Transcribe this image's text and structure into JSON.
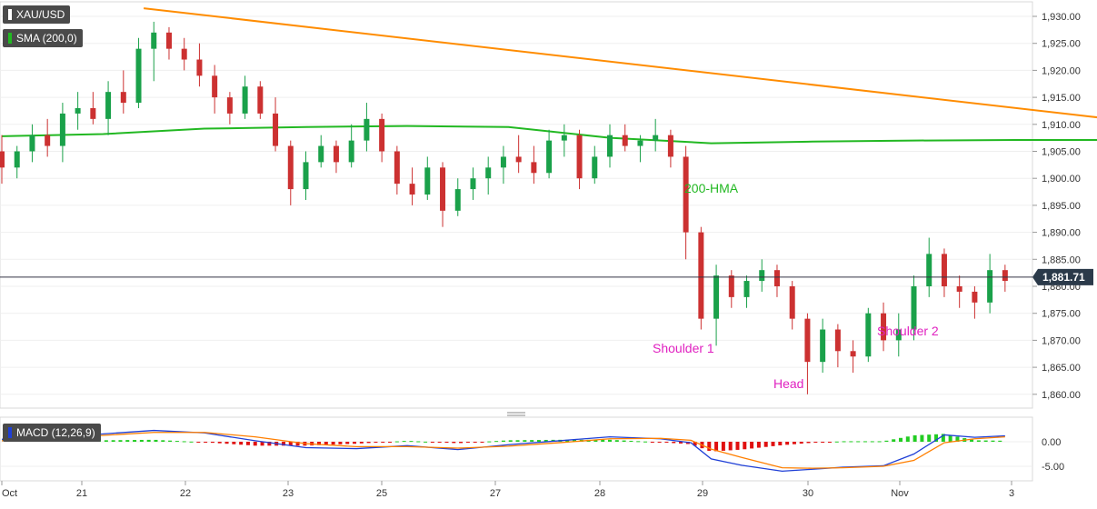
{
  "symbol": "XAU/USD",
  "indicator_label": "SMA (200,0)",
  "macd_label": "MACD (12,26,9)",
  "price_tag": "1,881.71",
  "colors": {
    "bull": "#1aa14a",
    "bear": "#cc3131",
    "trend_down": "#ff8c00",
    "neckline": "#ff00ff",
    "hma": "#22b822",
    "macd_line": "#1f3fd6",
    "signal_line": "#ff7f00",
    "hist_pos": "#22cc22",
    "hist_neg": "#e01010",
    "annotation": "#e020c0"
  },
  "chart_data": [
    {
      "type": "candlestick",
      "title": "XAU/USD",
      "x_ticks": [
        "Oct",
        "21",
        "22",
        "23",
        "25",
        "27",
        "28",
        "29",
        "30",
        "Nov",
        "3"
      ],
      "y_ticks": [
        "1,930.00",
        "1,925.00",
        "1,920.00",
        "1,915.00",
        "1,910.00",
        "1,905.00",
        "1,900.00",
        "1,895.00",
        "1,890.00",
        "1,885.00",
        "1,880.00",
        "1,875.00",
        "1,870.00",
        "1,865.00",
        "1,860.00"
      ],
      "ylim": [
        1858,
        1932
      ],
      "current_price": 1881.71,
      "overlays": {
        "hma_label": "200-HMA",
        "hma": [
          [
            0,
            1907.8
          ],
          [
            1,
            1908.2
          ],
          [
            2,
            1909.2
          ],
          [
            3,
            1909.5
          ],
          [
            4,
            1909.7
          ],
          [
            5,
            1909.5
          ],
          [
            6,
            1907.5
          ],
          [
            7,
            1906.5
          ],
          [
            8,
            1906.8
          ],
          [
            9,
            1907.0
          ],
          [
            10,
            1907.1
          ],
          [
            11,
            1907.1
          ],
          [
            12,
            1907.3
          ],
          [
            13,
            1907.2
          ],
          [
            14,
            1906.5
          ],
          [
            15,
            1904.0
          ],
          [
            16,
            1902.0
          ],
          [
            17,
            1899.5
          ],
          [
            17.3,
            1898.6
          ],
          [
            17.6,
            1897.8
          ]
        ],
        "resistance_line": [
          [
            1.4,
            1931.5
          ],
          [
            18.4,
            1895
          ]
        ],
        "neckline": [
          [
            14.2,
            1883.8
          ],
          [
            19.1,
            1888.3
          ]
        ]
      },
      "annotations": [
        "Shoulder 1",
        "Head",
        "Shoulder 2"
      ],
      "series": [
        {
          "name": "candles",
          "ohlc": [
            [
              0,
              1905,
              1908,
              1899,
              1902
            ],
            [
              0.15,
              1902,
              1906,
              1900,
              1905
            ],
            [
              0.3,
              1905,
              1910,
              1903,
              1908
            ],
            [
              0.45,
              1908,
              1911,
              1904,
              1906
            ],
            [
              0.6,
              1906,
              1914,
              1903,
              1912
            ],
            [
              0.75,
              1912,
              1916,
              1909,
              1913
            ],
            [
              0.9,
              1913,
              1916,
              1910,
              1911
            ],
            [
              1.05,
              1911,
              1918,
              1908,
              1916
            ],
            [
              1.2,
              1916,
              1920,
              1912,
              1914
            ],
            [
              1.35,
              1914,
              1926,
              1913,
              1924
            ],
            [
              1.5,
              1924,
              1929,
              1918,
              1927
            ],
            [
              1.65,
              1927,
              1928,
              1922,
              1924
            ],
            [
              1.8,
              1924,
              1926,
              1920,
              1922
            ],
            [
              1.95,
              1922,
              1925,
              1917,
              1919
            ],
            [
              2.1,
              1919,
              1921,
              1912,
              1915
            ],
            [
              2.25,
              1915,
              1916,
              1910,
              1912
            ],
            [
              2.4,
              1912,
              1919,
              1911,
              1917
            ],
            [
              2.55,
              1917,
              1918,
              1911,
              1912
            ],
            [
              2.7,
              1912,
              1915,
              1905,
              1906
            ],
            [
              2.85,
              1906,
              1907,
              1895,
              1898
            ],
            [
              3.0,
              1898,
              1905,
              1896,
              1903
            ],
            [
              3.15,
              1903,
              1908,
              1902,
              1906
            ],
            [
              3.3,
              1906,
              1907,
              1901,
              1903
            ],
            [
              3.45,
              1903,
              1910,
              1902,
              1907
            ],
            [
              3.6,
              1907,
              1914,
              1905,
              1911
            ],
            [
              3.75,
              1911,
              1912,
              1903,
              1905
            ],
            [
              3.9,
              1905,
              1906,
              1897,
              1899
            ],
            [
              4.05,
              1899,
              1902,
              1895,
              1897
            ],
            [
              4.2,
              1897,
              1904,
              1896,
              1902
            ],
            [
              4.35,
              1902,
              1903,
              1891,
              1894
            ],
            [
              4.5,
              1894,
              1900,
              1893,
              1898
            ],
            [
              4.65,
              1898,
              1902,
              1896,
              1900
            ],
            [
              4.8,
              1900,
              1904,
              1897,
              1902
            ],
            [
              4.95,
              1902,
              1906,
              1899,
              1904
            ],
            [
              5.1,
              1904,
              1908,
              1901,
              1903
            ],
            [
              5.25,
              1903,
              1906,
              1899,
              1901
            ],
            [
              5.4,
              1901,
              1909,
              1900,
              1907
            ],
            [
              5.55,
              1907,
              1910,
              1904,
              1908
            ],
            [
              5.7,
              1908,
              1909,
              1898,
              1900
            ],
            [
              5.85,
              1900,
              1906,
              1899,
              1904
            ],
            [
              6.0,
              1904,
              1910,
              1902,
              1908
            ],
            [
              6.15,
              1908,
              1910,
              1905,
              1906
            ],
            [
              6.3,
              1906,
              1908,
              1903,
              1907
            ],
            [
              6.45,
              1907,
              1911,
              1905,
              1908
            ],
            [
              6.6,
              1908,
              1909,
              1902,
              1904
            ],
            [
              6.75,
              1904,
              1906,
              1885,
              1890
            ],
            [
              6.9,
              1890,
              1891,
              1872,
              1874
            ],
            [
              7.05,
              1874,
              1884,
              1869,
              1882
            ],
            [
              7.2,
              1882,
              1883,
              1876,
              1878
            ],
            [
              7.35,
              1878,
              1882,
              1876,
              1881
            ],
            [
              7.5,
              1881,
              1885,
              1879,
              1883
            ],
            [
              7.65,
              1883,
              1884,
              1878,
              1880
            ],
            [
              7.8,
              1880,
              1881,
              1872,
              1874
            ],
            [
              7.95,
              1874,
              1875,
              1860,
              1866
            ],
            [
              8.1,
              1866,
              1874,
              1864,
              1872
            ],
            [
              8.25,
              1872,
              1873,
              1865,
              1868
            ],
            [
              8.4,
              1868,
              1870,
              1864,
              1867
            ],
            [
              8.55,
              1867,
              1876,
              1866,
              1875
            ],
            [
              8.7,
              1875,
              1877,
              1868,
              1870
            ],
            [
              8.85,
              1870,
              1875,
              1867,
              1872
            ],
            [
              9.0,
              1872,
              1882,
              1870,
              1880
            ],
            [
              9.15,
              1880,
              1889,
              1878,
              1886
            ],
            [
              9.3,
              1886,
              1887,
              1878,
              1880
            ],
            [
              9.45,
              1880,
              1882,
              1876,
              1879
            ],
            [
              9.6,
              1879,
              1880,
              1874,
              1877
            ],
            [
              9.75,
              1877,
              1886,
              1875,
              1883
            ],
            [
              9.9,
              1883,
              1884,
              1879,
              1881
            ]
          ]
        }
      ]
    },
    {
      "type": "line",
      "title": "MACD (12,26,9)",
      "y_ticks": [
        "0.00",
        "-5.00"
      ],
      "ylim": [
        -7,
        2.5
      ],
      "series": [
        {
          "name": "MACD (12,26,9)",
          "values": [
            [
              0,
              0.5
            ],
            [
              0.5,
              1.2
            ],
            [
              1.0,
              1.6
            ],
            [
              1.5,
              2.3
            ],
            [
              2.0,
              1.8
            ],
            [
              2.5,
              0.2
            ],
            [
              3.0,
              -1.2
            ],
            [
              3.5,
              -1.4
            ],
            [
              4.0,
              -0.8
            ],
            [
              4.5,
              -1.6
            ],
            [
              5.0,
              -0.6
            ],
            [
              5.5,
              0.2
            ],
            [
              6.0,
              1.0
            ],
            [
              6.5,
              0.6
            ],
            [
              6.8,
              -0.2
            ],
            [
              7.0,
              -3.5
            ],
            [
              7.3,
              -4.8
            ],
            [
              7.7,
              -6.0
            ],
            [
              8.0,
              -5.6
            ],
            [
              8.3,
              -5.2
            ],
            [
              8.7,
              -4.9
            ],
            [
              9.0,
              -2.5
            ],
            [
              9.3,
              1.4
            ],
            [
              9.6,
              0.9
            ],
            [
              9.9,
              1.2
            ]
          ]
        },
        {
          "name": "Signal",
          "values": [
            [
              0,
              0.2
            ],
            [
              0.5,
              0.8
            ],
            [
              1.0,
              1.3
            ],
            [
              1.5,
              1.9
            ],
            [
              2.0,
              1.9
            ],
            [
              2.5,
              1.0
            ],
            [
              3.0,
              -0.4
            ],
            [
              3.5,
              -1.0
            ],
            [
              4.0,
              -1.0
            ],
            [
              4.5,
              -1.3
            ],
            [
              5.0,
              -0.9
            ],
            [
              5.5,
              -0.2
            ],
            [
              6.0,
              0.6
            ],
            [
              6.5,
              0.7
            ],
            [
              6.8,
              0.3
            ],
            [
              7.0,
              -1.5
            ],
            [
              7.3,
              -3.2
            ],
            [
              7.7,
              -5.3
            ],
            [
              8.0,
              -5.4
            ],
            [
              8.3,
              -5.3
            ],
            [
              8.7,
              -5.0
            ],
            [
              9.0,
              -3.8
            ],
            [
              9.3,
              -0.2
            ],
            [
              9.6,
              0.6
            ],
            [
              9.9,
              1.0
            ]
          ]
        }
      ]
    }
  ]
}
